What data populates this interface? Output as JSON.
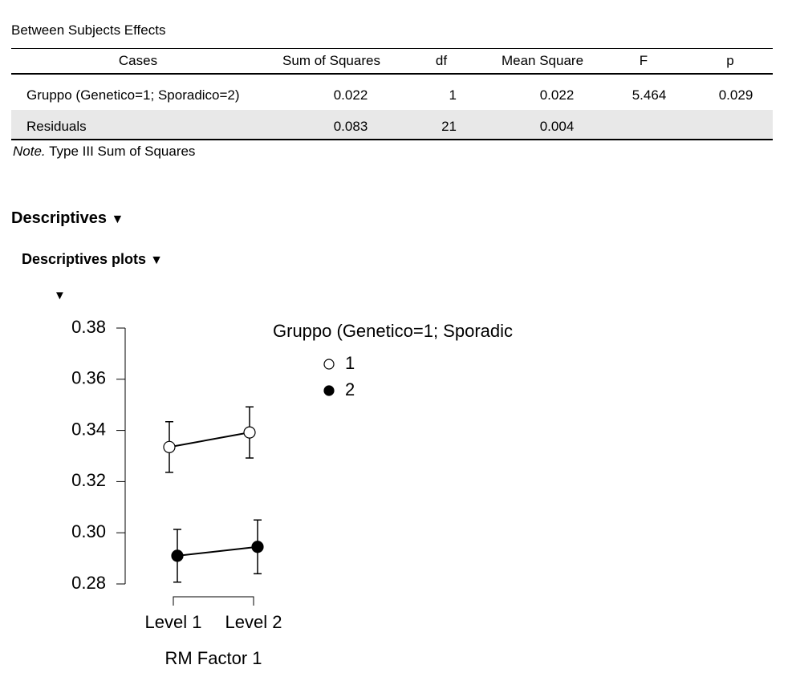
{
  "table": {
    "title": "Between Subjects Effects",
    "columns": [
      "Cases",
      "Sum of Squares",
      "df",
      "Mean Square",
      "F",
      "p"
    ],
    "rows": [
      [
        "Gruppo (Genetico=1; Sporadico=2)",
        "0.022",
        "1",
        "0.022",
        "5.464",
        "0.029"
      ],
      [
        "Residuals",
        "0.083",
        "21",
        "0.004"
      ]
    ],
    "note": {
      "label": "Note.",
      "text": "Type III Sum of Squares"
    }
  },
  "headings": [
    "Descriptives",
    "Descriptives plots"
  ],
  "chart_data": {
    "type": "line",
    "categories": [
      "Level 1",
      "Level 2"
    ],
    "xlabel": "RM Factor 1",
    "legend_title": "Gruppo (Genetico=1; Sporadic",
    "series": [
      {
        "name": "1",
        "color": "#ffffff",
        "values": [
          0.3335,
          0.3392
        ],
        "errors": [
          0.0099,
          0.01
        ]
      },
      {
        "name": "2",
        "color": "#000000",
        "values": [
          0.291,
          0.2945
        ],
        "errors": [
          0.0103,
          0.0105
        ]
      }
    ],
    "ylim": [
      0.28,
      0.38
    ],
    "yticks": [
      0.28,
      {
        "value": 0.3,
        "label": "0.30"
      },
      0.32,
      0.34,
      0.36,
      0.38
    ]
  }
}
